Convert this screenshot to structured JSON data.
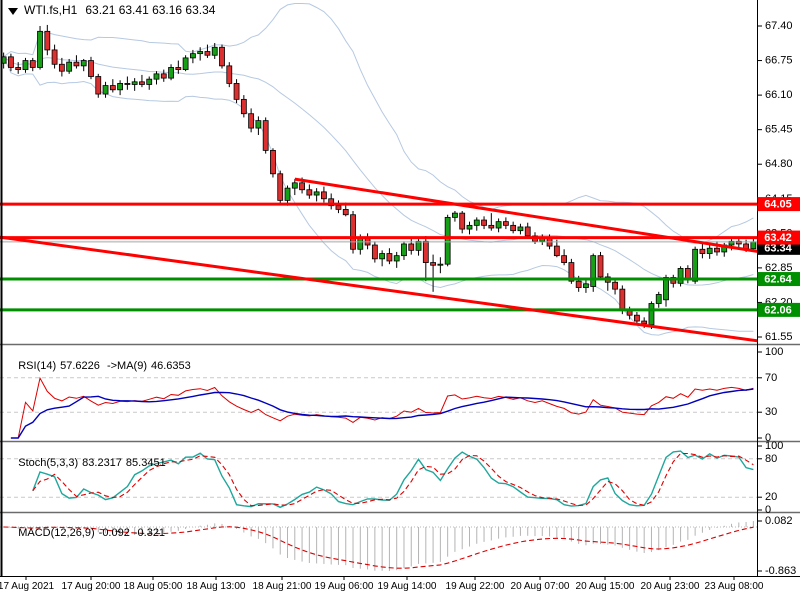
{
  "title": {
    "symbol": "WTI.fs,H1",
    "ohlc": "63.21 63.41 63.16 63.34"
  },
  "y_axis": {
    "ticks": [
      "67.40",
      "66.75",
      "66.10",
      "65.45",
      "64.80",
      "64.15",
      "63.50",
      "62.85",
      "62.20",
      "61.55"
    ],
    "badges": [
      {
        "text": "64.05",
        "price": 64.05,
        "bg": "#ff0000"
      },
      {
        "text": "63.34",
        "price": 63.34,
        "bg": "#000000"
      },
      {
        "text": "63.42",
        "price": 63.42,
        "bg": "#ff0000"
      },
      {
        "text": "62.64",
        "price": 62.64,
        "bg": "#008f00"
      },
      {
        "text": "62.06",
        "price": 62.06,
        "bg": "#008f00"
      }
    ]
  },
  "x_axis": {
    "labels": [
      "17 Aug 2021",
      "17 Aug 20:00",
      "18 Aug 05:00",
      "18 Aug 13:00",
      "18 Aug 21:00",
      "19 Aug 06:00",
      "19 Aug 14:00",
      "19 Aug 22:00",
      "20 Aug 07:00",
      "20 Aug 15:00",
      "20 Aug 23:00",
      "23 Aug 08:00"
    ]
  },
  "indicators": {
    "rsi": {
      "name": "RSI(14)",
      "value": "57.6226",
      "ma_name": "->MA(9)",
      "ma_value": "46.6353",
      "ticks": [
        "100",
        "70",
        "30",
        "0"
      ],
      "levels": [
        70,
        30
      ]
    },
    "stoch": {
      "name": "Stoch(5,3,3)",
      "value": "83.2317",
      "signal_value": "85.3451",
      "ticks": [
        "100",
        "80",
        "20",
        "0"
      ],
      "levels": [
        80,
        20
      ]
    },
    "macd": {
      "name": "MACD(12,26,9)",
      "value": "-0.092",
      "signal_value": "-0.321",
      "ticks": [
        "0.082",
        "-0.863"
      ]
    }
  },
  "colors": {
    "candle_up": "#17a017",
    "candle_down": "#dc3030",
    "wick": "#000000",
    "bollinger": "#b6c9e2",
    "resistance": "#ff0000",
    "support": "#008f00",
    "current_price_line": "#a8a8a8",
    "rsi_line": "#dd0000",
    "rsi_ma": "#0000bb",
    "stoch_main": "#1ea79d",
    "stoch_signal": "#dd0000",
    "macd_hist": "#b4b4b4",
    "macd_signal": "#dd0000",
    "level_dash": "#c9c9c9"
  },
  "chart_data": {
    "type": "candlestick",
    "symbol": "WTI.fs",
    "timeframe": "H1",
    "title": "WTI.fs,H1 63.21 63.41 63.16 63.34",
    "price_range": [
      61.42,
      67.51
    ],
    "x_tick_labels": [
      "17 Aug 2021",
      "17 Aug 20:00",
      "18 Aug 05:00",
      "18 Aug 13:00",
      "18 Aug 21:00",
      "19 Aug 06:00",
      "19 Aug 14:00",
      "19 Aug 22:00",
      "20 Aug 07:00",
      "20 Aug 15:00",
      "20 Aug 23:00",
      "23 Aug 08:00"
    ],
    "candles": [
      [
        66.7,
        66.9,
        66.6,
        66.82
      ],
      [
        66.82,
        66.88,
        66.55,
        66.62
      ],
      [
        66.62,
        66.72,
        66.5,
        66.58
      ],
      [
        66.58,
        66.8,
        66.52,
        66.75
      ],
      [
        66.75,
        66.8,
        66.55,
        66.62
      ],
      [
        66.62,
        67.4,
        66.58,
        67.3
      ],
      [
        67.3,
        67.42,
        66.85,
        66.95
      ],
      [
        66.95,
        67.05,
        66.6,
        66.68
      ],
      [
        66.68,
        66.8,
        66.45,
        66.55
      ],
      [
        66.55,
        66.78,
        66.5,
        66.72
      ],
      [
        66.72,
        66.85,
        66.6,
        66.65
      ],
      [
        66.65,
        66.78,
        66.55,
        66.75
      ],
      [
        66.75,
        66.82,
        66.4,
        66.45
      ],
      [
        66.45,
        66.5,
        66.05,
        66.12
      ],
      [
        66.12,
        66.35,
        66.05,
        66.28
      ],
      [
        66.28,
        66.4,
        66.15,
        66.2
      ],
      [
        66.2,
        66.38,
        66.1,
        66.32
      ],
      [
        66.32,
        66.45,
        66.2,
        66.3
      ],
      [
        66.3,
        66.42,
        66.18,
        66.35
      ],
      [
        66.35,
        66.48,
        66.25,
        66.3
      ],
      [
        66.3,
        66.45,
        66.2,
        66.4
      ],
      [
        66.4,
        66.55,
        66.3,
        66.5
      ],
      [
        66.5,
        66.58,
        66.35,
        66.42
      ],
      [
        66.42,
        66.68,
        66.38,
        66.62
      ],
      [
        66.62,
        66.75,
        66.5,
        66.58
      ],
      [
        66.58,
        66.85,
        66.55,
        66.8
      ],
      [
        66.8,
        66.95,
        66.7,
        66.88
      ],
      [
        66.88,
        67.0,
        66.75,
        66.92
      ],
      [
        66.92,
        67.05,
        66.8,
        66.85
      ],
      [
        66.85,
        67.08,
        66.78,
        67.0
      ],
      [
        67.0,
        67.05,
        66.6,
        66.65
      ],
      [
        66.65,
        66.72,
        66.25,
        66.32
      ],
      [
        66.32,
        66.4,
        65.95,
        66.02
      ],
      [
        66.02,
        66.1,
        65.68,
        65.75
      ],
      [
        65.75,
        65.85,
        65.4,
        65.48
      ],
      [
        65.48,
        65.7,
        65.35,
        65.62
      ],
      [
        65.62,
        65.68,
        65.0,
        65.06
      ],
      [
        65.06,
        65.1,
        64.55,
        64.62
      ],
      [
        64.62,
        64.68,
        64.05,
        64.12
      ],
      [
        64.12,
        64.4,
        64.02,
        64.35
      ],
      [
        64.35,
        64.52,
        64.22,
        64.45
      ],
      [
        64.45,
        64.55,
        64.25,
        64.32
      ],
      [
        64.32,
        64.42,
        64.15,
        64.22
      ],
      [
        64.22,
        64.35,
        64.1,
        64.28
      ],
      [
        64.28,
        64.38,
        64.08,
        64.15
      ],
      [
        64.15,
        64.25,
        63.95,
        64.02
      ],
      [
        64.02,
        64.12,
        63.88,
        63.95
      ],
      [
        63.95,
        64.08,
        63.82,
        63.85
      ],
      [
        63.85,
        63.92,
        63.12,
        63.2
      ],
      [
        63.2,
        63.48,
        63.1,
        63.42
      ],
      [
        63.42,
        63.5,
        63.2,
        63.28
      ],
      [
        63.28,
        63.35,
        62.95,
        63.02
      ],
      [
        63.02,
        63.18,
        62.88,
        63.12
      ],
      [
        63.12,
        63.22,
        62.92,
        62.98
      ],
      [
        62.98,
        63.15,
        62.85,
        63.08
      ],
      [
        63.08,
        63.35,
        63.0,
        63.3
      ],
      [
        63.3,
        63.4,
        63.1,
        63.18
      ],
      [
        63.18,
        63.42,
        63.08,
        63.35
      ],
      [
        63.35,
        63.45,
        62.6,
        62.95
      ],
      [
        62.95,
        63.1,
        62.4,
        62.9
      ],
      [
        62.9,
        63.05,
        62.75,
        62.92
      ],
      [
        62.92,
        63.85,
        62.88,
        63.8
      ],
      [
        63.8,
        63.92,
        63.72,
        63.88
      ],
      [
        63.88,
        63.92,
        63.5,
        63.58
      ],
      [
        63.58,
        63.72,
        63.48,
        63.65
      ],
      [
        63.65,
        63.8,
        63.55,
        63.75
      ],
      [
        63.75,
        63.82,
        63.58,
        63.65
      ],
      [
        63.65,
        63.88,
        63.55,
        63.6
      ],
      [
        63.6,
        63.78,
        63.52,
        63.72
      ],
      [
        63.72,
        63.8,
        63.58,
        63.65
      ],
      [
        63.65,
        63.72,
        63.5,
        63.55
      ],
      [
        63.55,
        63.68,
        63.48,
        63.62
      ],
      [
        63.62,
        63.7,
        63.4,
        63.45
      ],
      [
        63.45,
        63.52,
        63.3,
        63.35
      ],
      [
        63.35,
        63.48,
        63.28,
        63.42
      ],
      [
        63.42,
        63.48,
        63.2,
        63.26
      ],
      [
        63.26,
        63.38,
        63.05,
        63.08
      ],
      [
        63.08,
        63.2,
        62.9,
        62.95
      ],
      [
        62.95,
        63.02,
        62.55,
        62.6
      ],
      [
        62.6,
        62.7,
        62.4,
        62.48
      ],
      [
        62.48,
        62.62,
        62.38,
        62.55
      ],
      [
        62.5,
        63.12,
        62.4,
        63.08
      ],
      [
        63.08,
        63.15,
        62.62,
        62.68
      ],
      [
        62.68,
        62.75,
        62.42,
        62.58
      ],
      [
        62.58,
        62.65,
        62.35,
        62.45
      ],
      [
        62.45,
        62.52,
        61.98,
        62.05
      ],
      [
        62.05,
        62.12,
        61.88,
        61.96
      ],
      [
        61.96,
        62.02,
        61.78,
        61.85
      ],
      [
        61.85,
        61.92,
        61.72,
        61.8
      ],
      [
        61.78,
        62.22,
        61.7,
        62.18
      ],
      [
        62.18,
        62.4,
        62.1,
        62.35
      ],
      [
        62.25,
        62.72,
        62.12,
        62.67
      ],
      [
        62.67,
        62.72,
        62.48,
        62.56
      ],
      [
        62.56,
        62.88,
        62.5,
        62.84
      ],
      [
        62.84,
        62.9,
        62.56,
        62.62
      ],
      [
        62.6,
        63.25,
        62.55,
        63.2
      ],
      [
        63.2,
        63.3,
        63.03,
        63.12
      ],
      [
        63.12,
        63.28,
        63.02,
        63.22
      ],
      [
        63.22,
        63.35,
        63.08,
        63.15
      ],
      [
        63.15,
        63.32,
        63.06,
        63.28
      ],
      [
        63.28,
        63.4,
        63.18,
        63.35
      ],
      [
        63.35,
        63.42,
        63.24,
        63.3
      ],
      [
        63.3,
        63.38,
        63.15,
        63.21
      ],
      [
        63.21,
        63.41,
        63.16,
        63.34
      ]
    ],
    "overlays": {
      "bollinger": {
        "period": 20,
        "deviation": 2
      },
      "horizontal_lines": [
        {
          "price": 64.05,
          "role": "resistance",
          "color": "#ff0000"
        },
        {
          "price": 63.42,
          "role": "resistance",
          "color": "#ff0000"
        },
        {
          "price": 62.64,
          "role": "support",
          "color": "#008f00"
        },
        {
          "price": 62.06,
          "role": "support",
          "color": "#008f00"
        }
      ],
      "trendlines": [
        {
          "name": "upper-descending-trendline",
          "from_bar": 40,
          "from_price": 64.52,
          "to_bar": 105,
          "to_price": 63.13,
          "color": "#ff0000"
        },
        {
          "name": "lower-descending-trendline",
          "from_bar": -0.5,
          "from_price": 63.43,
          "to_bar": 104,
          "to_price": 61.47,
          "color": "#ff0000"
        }
      ],
      "current_price": 63.34
    }
  }
}
